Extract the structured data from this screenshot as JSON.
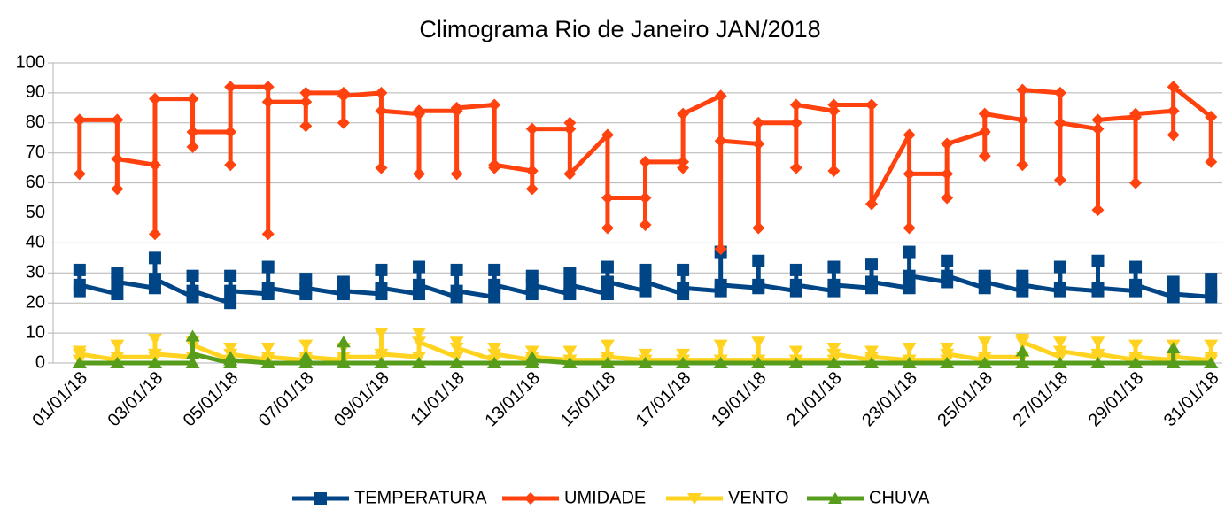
{
  "chart_data": {
    "type": "line",
    "title": "Climograma Rio de Janeiro JAN/2018",
    "x": [
      1,
      1,
      1,
      2,
      2,
      2,
      3,
      3,
      3,
      4,
      4,
      4,
      5,
      5,
      5,
      6,
      6,
      6,
      7,
      7,
      7,
      8,
      8,
      8,
      9,
      9,
      9,
      10,
      10,
      10,
      11,
      11,
      11,
      12,
      12,
      12,
      13,
      13,
      13,
      14,
      14,
      14,
      15,
      15,
      15,
      16,
      16,
      16,
      17,
      17,
      17,
      18,
      18,
      18,
      19,
      19,
      19,
      20,
      20,
      20,
      21,
      21,
      21,
      22,
      22,
      22,
      23,
      23,
      23,
      24,
      24,
      24,
      25,
      25,
      25,
      26,
      26,
      26,
      27,
      27,
      27,
      28,
      28,
      28,
      29,
      29,
      29,
      30,
      30,
      30,
      31,
      31,
      31
    ],
    "series": [
      {
        "name": "TEMPERATURA",
        "color": "#004586",
        "marker": "square",
        "values": [
          24,
          31,
          26,
          23,
          30,
          27,
          25,
          35,
          28,
          22,
          29,
          24,
          20,
          29,
          24,
          23,
          32,
          25,
          23,
          28,
          25,
          23,
          27,
          24,
          23,
          31,
          25,
          23,
          32,
          26,
          22,
          31,
          24,
          22,
          31,
          26,
          23,
          29,
          26,
          23,
          30,
          26,
          23,
          32,
          27,
          24,
          31,
          27,
          23,
          31,
          25,
          24,
          37,
          26,
          25,
          34,
          26,
          24,
          31,
          26,
          24,
          32,
          26,
          25,
          33,
          27,
          25,
          37,
          29,
          27,
          34,
          29,
          25,
          29,
          27,
          24,
          29,
          26,
          24,
          32,
          25,
          24,
          34,
          25,
          24,
          32,
          26,
          22,
          27,
          23,
          22,
          28,
          24
        ]
      },
      {
        "name": "UMIDADE",
        "color": "#ff420e",
        "marker": "diamond",
        "values": [
          63,
          81,
          81,
          81,
          58,
          68,
          66,
          43,
          88,
          88,
          72,
          77,
          77,
          66,
          92,
          92,
          43,
          87,
          87,
          79,
          90,
          90,
          80,
          89,
          90,
          65,
          84,
          83,
          63,
          84,
          84,
          63,
          85,
          86,
          65,
          66,
          64,
          58,
          78,
          78,
          80,
          63,
          76,
          45,
          55,
          55,
          46,
          67,
          67,
          65,
          83,
          89,
          38,
          74,
          73,
          45,
          80,
          80,
          65,
          86,
          84,
          64,
          86,
          86,
          53,
          53,
          76,
          45,
          63,
          63,
          55,
          73,
          77,
          69,
          83,
          81,
          66,
          91,
          90,
          61,
          80,
          78,
          51,
          81,
          82,
          60,
          83,
          84,
          76,
          92,
          82,
          67,
          82
        ]
      },
      {
        "name": "VENTO",
        "color": "#ffd320",
        "marker": "down",
        "values": [
          1,
          4,
          3,
          1,
          6,
          2,
          2,
          8,
          3,
          2,
          7,
          6,
          1,
          5,
          3,
          1,
          5,
          2,
          1,
          6,
          2,
          1,
          5,
          2,
          2,
          10,
          3,
          2,
          10,
          7,
          2,
          7,
          5,
          1,
          5,
          3,
          1,
          4,
          2,
          1,
          4,
          1,
          1,
          6,
          2,
          1,
          3,
          1,
          1,
          3,
          1,
          1,
          6,
          1,
          1,
          7,
          1,
          1,
          4,
          1,
          1,
          5,
          3,
          1,
          4,
          2,
          1,
          5,
          1,
          1,
          5,
          3,
          1,
          7,
          2,
          2,
          8,
          7,
          2,
          7,
          4,
          2,
          7,
          3,
          1,
          6,
          2,
          1,
          6,
          2,
          1,
          6,
          2
        ]
      },
      {
        "name": "CHUVA",
        "color": "#579d1c",
        "marker": "up",
        "values": [
          0,
          0,
          0,
          0,
          0,
          0,
          0,
          0,
          0,
          0,
          9,
          3,
          0,
          2,
          1,
          0,
          0,
          0,
          0,
          2,
          0,
          0,
          7,
          0,
          0,
          0,
          0,
          0,
          0,
          0,
          0,
          0,
          0,
          0,
          0,
          0,
          0,
          2,
          1,
          0,
          0,
          0,
          0,
          0,
          0,
          0,
          0,
          0,
          0,
          0,
          0,
          0,
          0,
          0,
          0,
          0,
          0,
          0,
          0,
          0,
          0,
          0,
          0,
          0,
          0,
          0,
          0,
          0,
          0,
          0,
          0,
          0,
          0,
          0,
          0,
          0,
          4,
          0,
          0,
          0,
          0,
          0,
          0,
          0,
          0,
          0,
          0,
          0,
          5,
          0,
          0,
          0,
          0
        ]
      }
    ],
    "xlim": [
      0.3,
      31.3
    ],
    "xticks": [
      {
        "value": 1,
        "label": "01/01/18"
      },
      {
        "value": 3,
        "label": "03/01/18"
      },
      {
        "value": 5,
        "label": "05/01/18"
      },
      {
        "value": 7,
        "label": "07/01/18"
      },
      {
        "value": 9,
        "label": "09/01/18"
      },
      {
        "value": 11,
        "label": "11/01/18"
      },
      {
        "value": 13,
        "label": "13/01/18"
      },
      {
        "value": 15,
        "label": "15/01/18"
      },
      {
        "value": 17,
        "label": "17/01/18"
      },
      {
        "value": 19,
        "label": "19/01/18"
      },
      {
        "value": 21,
        "label": "21/01/18"
      },
      {
        "value": 23,
        "label": "23/01/18"
      },
      {
        "value": 25,
        "label": "25/01/18"
      },
      {
        "value": 27,
        "label": "27/01/18"
      },
      {
        "value": 29,
        "label": "29/01/18"
      },
      {
        "value": 31,
        "label": "31/01/18"
      }
    ],
    "ylim": [
      0,
      100
    ],
    "yticks": [
      0,
      10,
      20,
      30,
      40,
      50,
      60,
      70,
      80,
      90,
      100
    ],
    "grid": true,
    "legend": "bottom"
  }
}
